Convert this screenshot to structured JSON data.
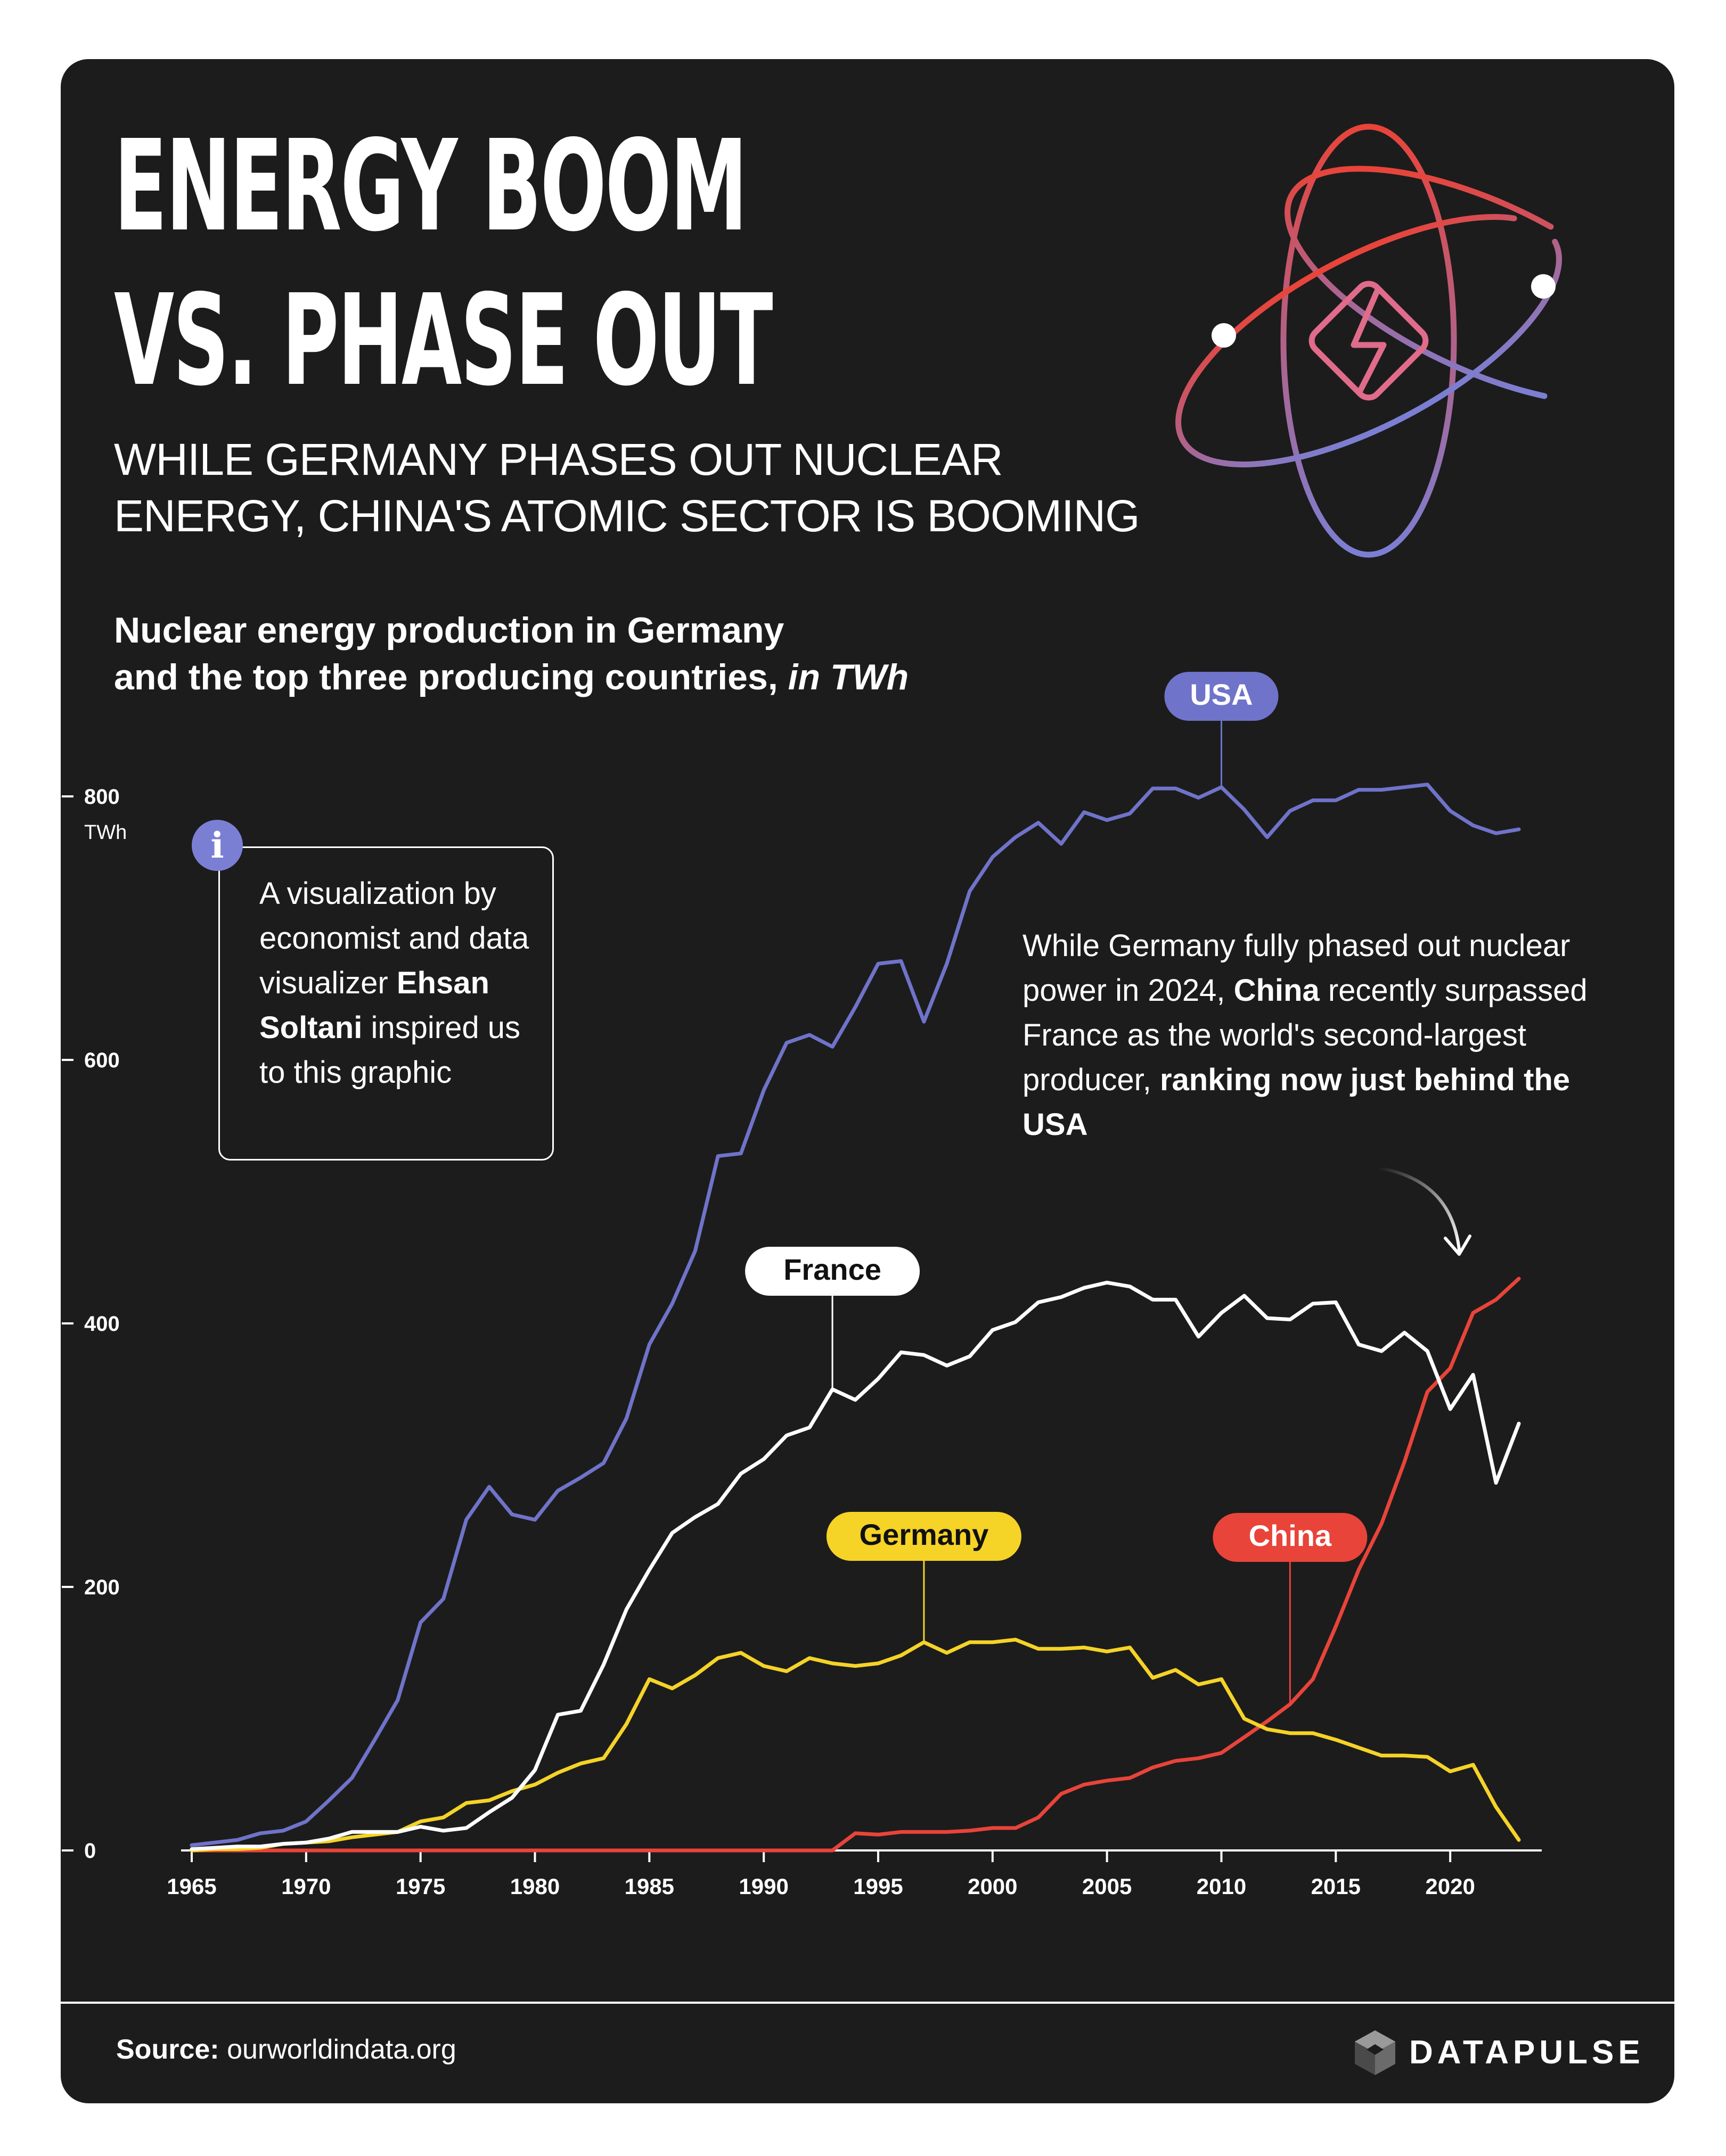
{
  "header": {
    "title_line1": "ENERGY BOOM",
    "title_line2": "VS. PHASE OUT",
    "subtitle_line1": "WHILE GERMANY PHASES OUT NUCLEAR",
    "subtitle_line2": "ENERGY, CHINA'S ATOMIC SECTOR IS BOOMING"
  },
  "chart_caption": {
    "line1": "Nuclear energy production in Germany",
    "line2_plain": "and the top three producing countries,",
    "line2_italic": "in TWh"
  },
  "info": {
    "badge": "i",
    "text_1": "A visualization by economist and data visualizer",
    "name": "Ehsan Soltani",
    "text_2": "inspired us to this graphic"
  },
  "annotation": {
    "text_1": "While Germany fully phased out nuclear power in 2024,",
    "china": "China",
    "text_2": "recently surpassed France as the world's second-largest producer,",
    "bold_end": "ranking now just behind the USA"
  },
  "footer": {
    "source_label": "Source:",
    "source_value": "ourworldindata.org",
    "brand": "DATAPULSE"
  },
  "colors": {
    "background": "#1c1c1c",
    "usa": "#6f73c9",
    "france": "#ffffff",
    "germany": "#f5d327",
    "china": "#e8443a",
    "atom_top": "#e8443a",
    "atom_bottom": "#7b7fd4"
  },
  "icons": [
    "atom-icon",
    "lightning-bolt-icon",
    "info-icon",
    "curved-arrow-icon",
    "datapulse-logo-icon"
  ],
  "chart_data": {
    "type": "line",
    "unit": "TWh",
    "x": [
      1965,
      1966,
      1967,
      1968,
      1969,
      1970,
      1971,
      1972,
      1973,
      1974,
      1975,
      1976,
      1977,
      1978,
      1979,
      1980,
      1981,
      1982,
      1983,
      1984,
      1985,
      1986,
      1987,
      1988,
      1989,
      1990,
      1991,
      1992,
      1993,
      1994,
      1995,
      1996,
      1997,
      1998,
      1999,
      2000,
      2001,
      2002,
      2003,
      2004,
      2005,
      2006,
      2007,
      2008,
      2009,
      2010,
      2011,
      2012,
      2013,
      2014,
      2015,
      2016,
      2017,
      2018,
      2019,
      2020,
      2021,
      2022,
      2023
    ],
    "x_ticks": [
      1965,
      1970,
      1975,
      1980,
      1985,
      1990,
      1995,
      2000,
      2005,
      2010,
      2015,
      2020
    ],
    "y_ticks": [
      0,
      200,
      400,
      600,
      800
    ],
    "y_unit_label": "TWh",
    "ylim": [
      0,
      820
    ],
    "xlim": [
      1965,
      2024
    ],
    "grid": false,
    "series": [
      {
        "name": "USA",
        "color": "#6f73c9",
        "label_year": 2010,
        "values": [
          4,
          6,
          8,
          13,
          15,
          22,
          38,
          55,
          84,
          114,
          173,
          191,
          251,
          276,
          255,
          251,
          273,
          283,
          294,
          328,
          384,
          415,
          455,
          527,
          529,
          577,
          613,
          619,
          610,
          640,
          673,
          675,
          629,
          673,
          728,
          754,
          769,
          780,
          764,
          788,
          782,
          787,
          806,
          806,
          799,
          807,
          790,
          769,
          789,
          797,
          797,
          805,
          805,
          807,
          809,
          789,
          778,
          772,
          775
        ]
      },
      {
        "name": "France",
        "color": "#ffffff",
        "label_year": 1993,
        "values": [
          1,
          2,
          3,
          3,
          5,
          6,
          9,
          14,
          14,
          14,
          18,
          15,
          17,
          29,
          40,
          61,
          103,
          106,
          141,
          183,
          213,
          241,
          253,
          263,
          286,
          297,
          315,
          321,
          350,
          342,
          358,
          378,
          376,
          368,
          375,
          395,
          401,
          416,
          420,
          427,
          431,
          428,
          418,
          418,
          390,
          408,
          421,
          404,
          403,
          415,
          416,
          384,
          379,
          393,
          379,
          335,
          361,
          279,
          324
        ]
      },
      {
        "name": "Germany",
        "color": "#f5d327",
        "label_year": 1997,
        "values": [
          0,
          1,
          1,
          2,
          5,
          6,
          7,
          10,
          12,
          14,
          22,
          25,
          36,
          38,
          45,
          50,
          59,
          66,
          70,
          96,
          130,
          123,
          133,
          146,
          150,
          140,
          136,
          146,
          142,
          140,
          142,
          148,
          158,
          150,
          158,
          158,
          160,
          153,
          153,
          154,
          151,
          154,
          131,
          137,
          126,
          130,
          100,
          92,
          89,
          89,
          84,
          78,
          72,
          72,
          71,
          60,
          65,
          33,
          8
        ]
      },
      {
        "name": "China",
        "color": "#e8443a",
        "label_year": 2013,
        "values": [
          0,
          0,
          0,
          0,
          0,
          0,
          0,
          0,
          0,
          0,
          0,
          0,
          0,
          0,
          0,
          0,
          0,
          0,
          0,
          0,
          0,
          0,
          0,
          0,
          0,
          0,
          0,
          0,
          0,
          13,
          12,
          14,
          14,
          14,
          15,
          17,
          17,
          25,
          43,
          50,
          53,
          55,
          63,
          68,
          70,
          74,
          86,
          98,
          111,
          130,
          170,
          213,
          248,
          295,
          348,
          366,
          408,
          418,
          434
        ]
      }
    ]
  }
}
